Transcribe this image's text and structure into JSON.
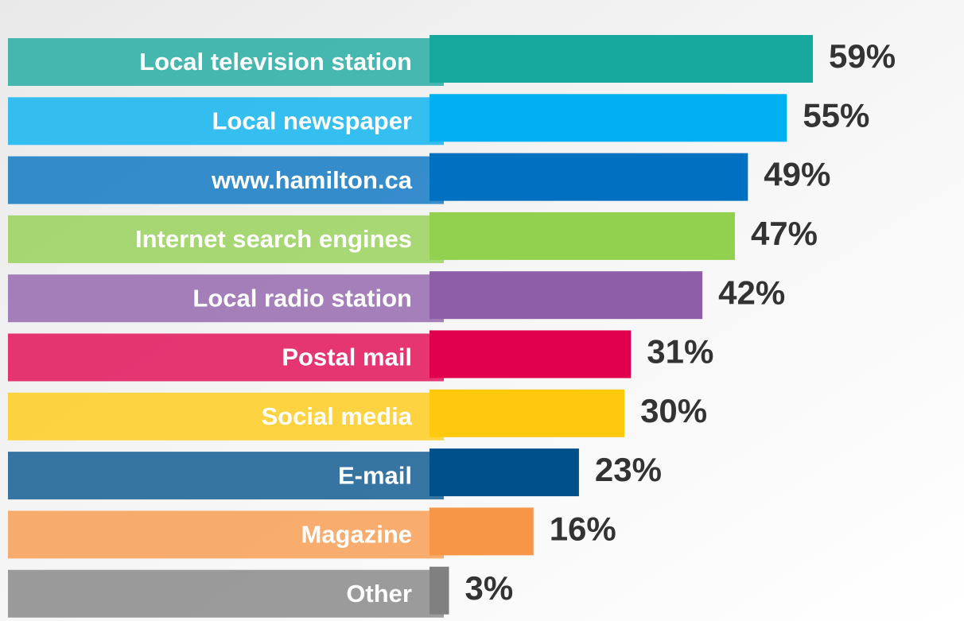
{
  "chart_data": {
    "type": "bar",
    "orientation": "horizontal",
    "categories": [
      "Local television station",
      "Local newspaper",
      "www.hamilton.ca",
      "Internet search engines",
      "Local radio station",
      "Postal mail",
      "Social media",
      "E-mail",
      "Magazine",
      "Other"
    ],
    "values": [
      59,
      55,
      49,
      47,
      42,
      31,
      30,
      23,
      16,
      3
    ],
    "value_labels": [
      "59%",
      "55%",
      "49%",
      "47%",
      "42%",
      "31%",
      "30%",
      "23%",
      "16%",
      "3%"
    ],
    "colors": [
      "#17a89d",
      "#00b0f0",
      "#0070c0",
      "#92d050",
      "#8e5ea8",
      "#e0004d",
      "#ffc90e",
      "#00508a",
      "#f79646",
      "#808080"
    ]
  }
}
